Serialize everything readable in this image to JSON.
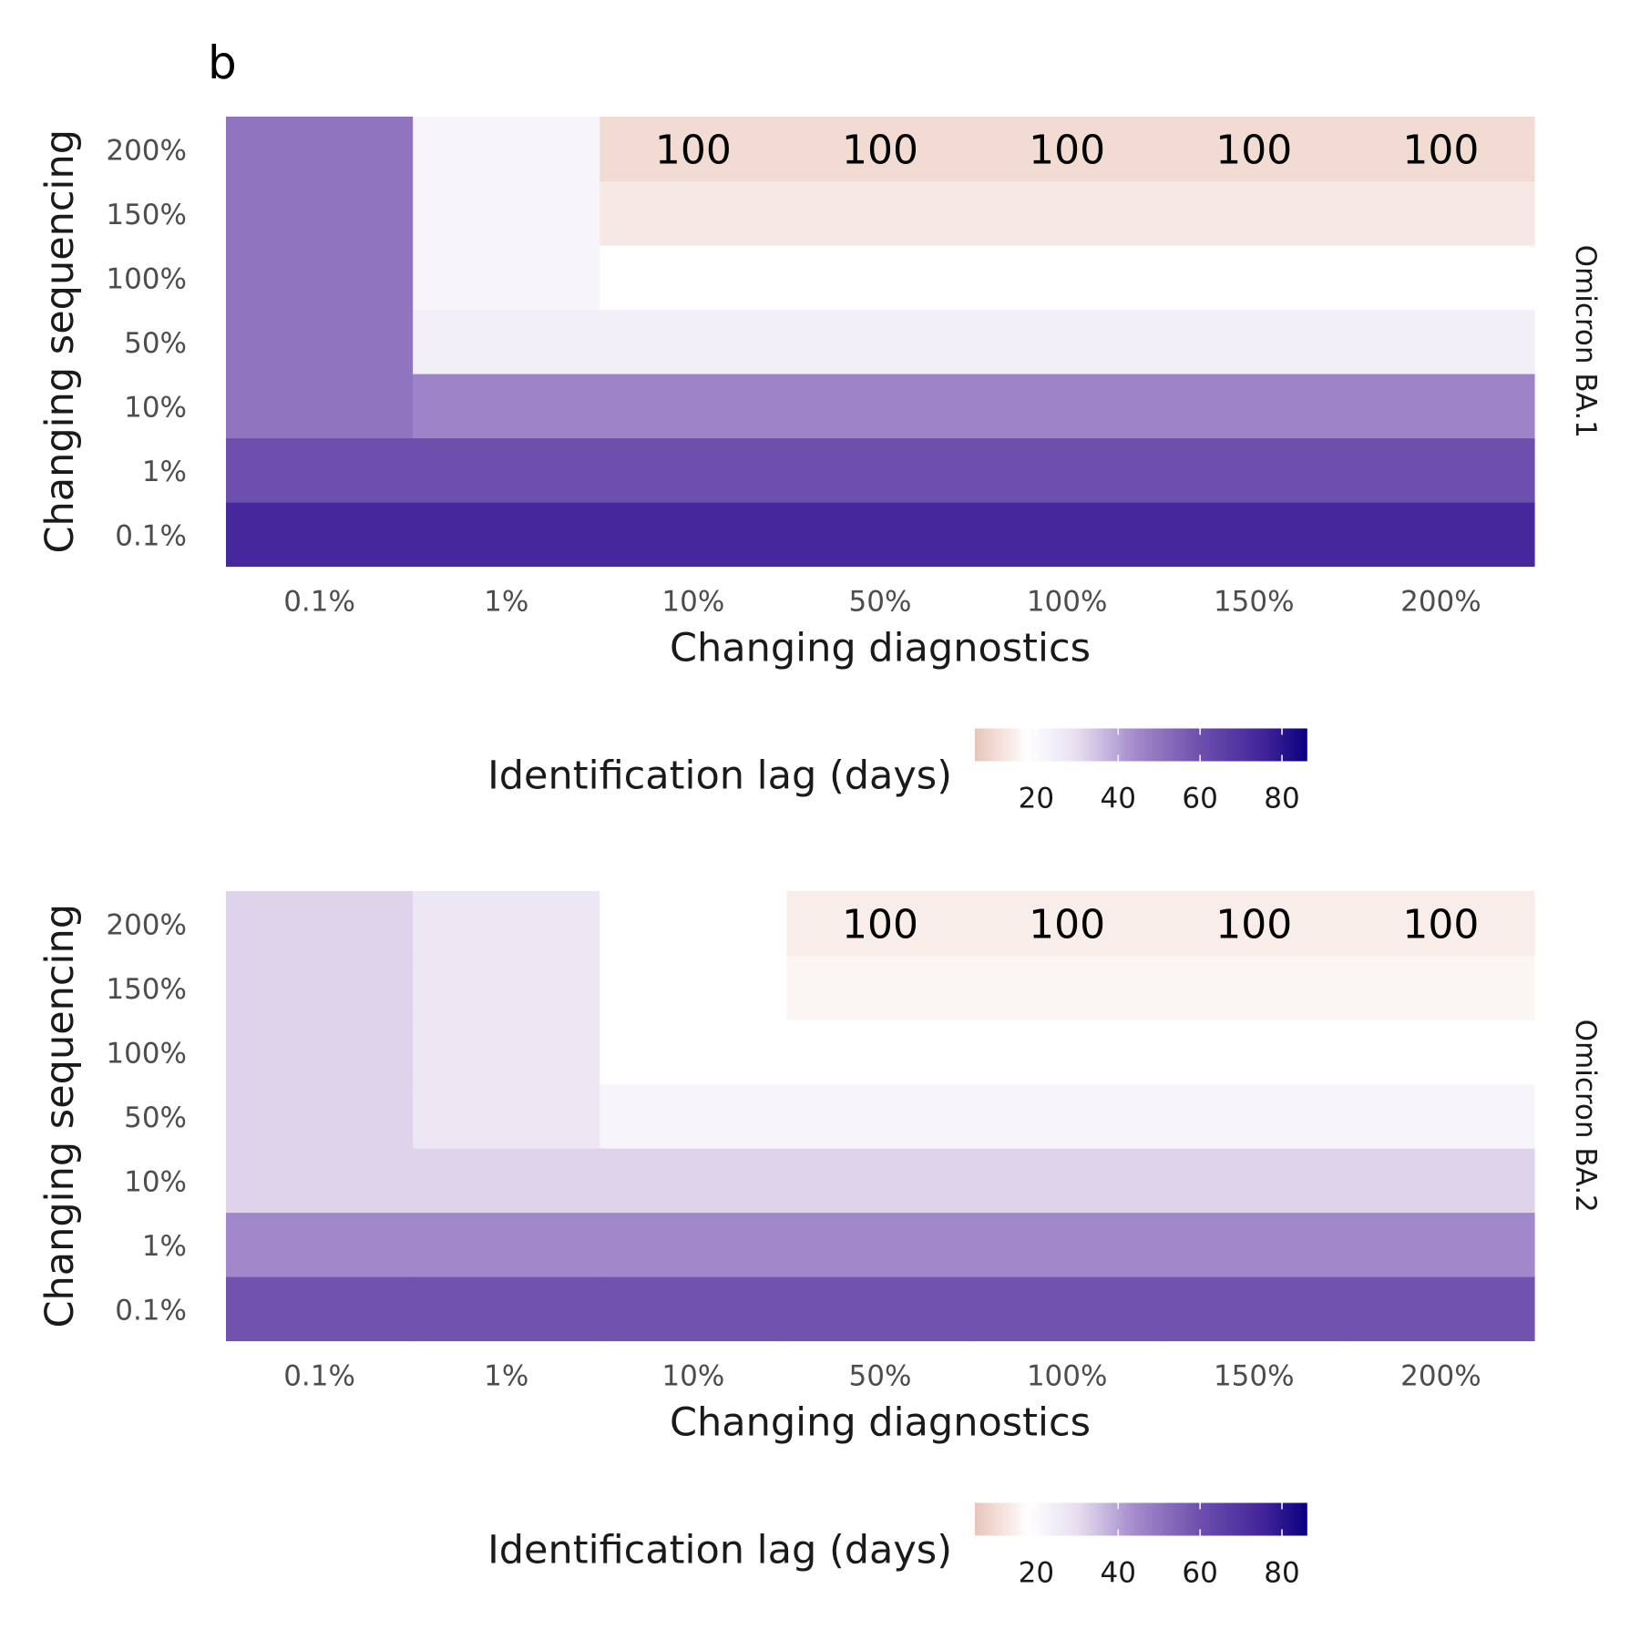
{
  "panel_tag": "b",
  "chart_data": [
    {
      "type": "heatmap",
      "facet_label": "Omicron BA.1",
      "xlabel": "Changing diagnostics",
      "ylabel": "Changing sequencing",
      "x_categories": [
        "0.1%",
        "1%",
        "10%",
        "50%",
        "100%",
        "150%",
        "200%"
      ],
      "y_categories": [
        "0.1%",
        "1%",
        "10%",
        "50%",
        "100%",
        "150%",
        "200%"
      ],
      "values_note": "rows ordered by y_categories (0.1% → 200%), columns by x_categories",
      "values": [
        [
          74,
          74,
          74,
          74,
          74,
          74,
          74
        ],
        [
          60,
          60,
          60,
          60,
          60,
          60,
          60
        ],
        [
          50,
          46,
          46,
          46,
          46,
          46,
          46
        ],
        [
          50,
          24,
          24,
          24,
          24,
          24,
          24
        ],
        [
          50,
          22,
          18,
          18,
          18,
          18,
          18
        ],
        [
          50,
          22,
          13,
          13,
          13,
          13,
          13
        ],
        [
          50,
          22,
          10,
          10,
          10,
          10,
          10
        ]
      ],
      "cell_labels": [
        [
          null,
          null,
          null,
          null,
          null,
          null,
          null
        ],
        [
          null,
          null,
          null,
          null,
          null,
          null,
          null
        ],
        [
          null,
          null,
          null,
          null,
          null,
          null,
          null
        ],
        [
          null,
          null,
          null,
          null,
          null,
          null,
          null
        ],
        [
          null,
          null,
          null,
          null,
          null,
          null,
          null
        ],
        [
          null,
          null,
          null,
          null,
          null,
          null,
          null
        ],
        [
          null,
          null,
          "100",
          "100",
          "100",
          "100",
          "100"
        ]
      ],
      "legend": {
        "title": "Identification lag (days)",
        "ticks": [
          20,
          40,
          60,
          80
        ],
        "range": [
          5,
          86
        ]
      }
    },
    {
      "type": "heatmap",
      "facet_label": "Omicron BA.2",
      "xlabel": "Changing diagnostics",
      "ylabel": "Changing sequencing",
      "x_categories": [
        "0.1%",
        "1%",
        "10%",
        "50%",
        "100%",
        "150%",
        "200%"
      ],
      "y_categories": [
        "0.1%",
        "1%",
        "10%",
        "50%",
        "100%",
        "150%",
        "200%"
      ],
      "values_note": "rows ordered by y_categories (0.1% → 200%), columns by x_categories",
      "values": [
        [
          59,
          59,
          59,
          59,
          59,
          59,
          59
        ],
        [
          45,
          45,
          45,
          45,
          45,
          45,
          45
        ],
        [
          32,
          32,
          32,
          32,
          32,
          32,
          32
        ],
        [
          32,
          27,
          22,
          22,
          22,
          22,
          22
        ],
        [
          32,
          27,
          18,
          18,
          18,
          18,
          18
        ],
        [
          32,
          27,
          18,
          16,
          16,
          16,
          16
        ],
        [
          32,
          27,
          18,
          14,
          14,
          14,
          14
        ]
      ],
      "cell_labels": [
        [
          null,
          null,
          null,
          null,
          null,
          null,
          null
        ],
        [
          null,
          null,
          null,
          null,
          null,
          null,
          null
        ],
        [
          null,
          null,
          null,
          null,
          null,
          null,
          null
        ],
        [
          null,
          null,
          null,
          null,
          null,
          null,
          null
        ],
        [
          null,
          null,
          null,
          null,
          null,
          null,
          null
        ],
        [
          null,
          null,
          null,
          null,
          null,
          null,
          null
        ],
        [
          null,
          null,
          null,
          "100",
          "100",
          "100",
          "100"
        ]
      ],
      "legend": {
        "title": "Identification lag (days)",
        "ticks": [
          20,
          40,
          60,
          80
        ],
        "range": [
          5,
          86
        ]
      }
    }
  ],
  "colors": {
    "scale_low": "#e8c4b8",
    "scale_mid": "#ffffff",
    "scale_high": "#0b0080",
    "tick_text": "#4d4d4d",
    "title_text": "#1a1a1a"
  }
}
